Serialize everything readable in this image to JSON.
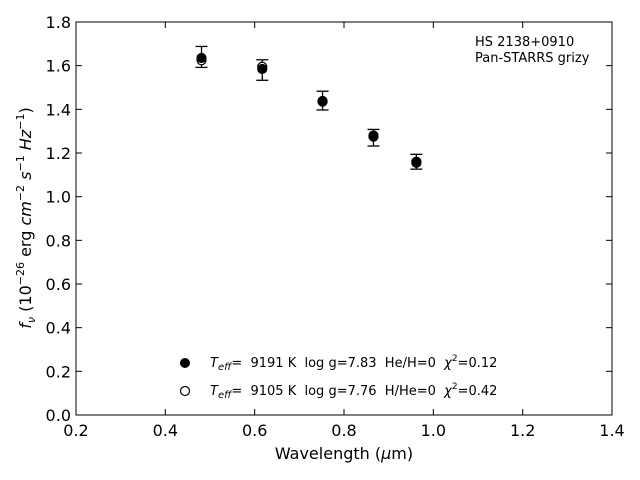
{
  "chart_data": {
    "type": "scatter",
    "title": "",
    "xlabel": "Wavelength (μm)",
    "ylabel": "f_ν (10^-26 erg cm^-2 s^-1 Hz^-1)",
    "xlim": [
      0.2,
      1.4
    ],
    "ylim": [
      0.0,
      1.8
    ],
    "xticks": [
      "0.2",
      "0.4",
      "0.6",
      "0.8",
      "1.0",
      "1.2",
      "1.4"
    ],
    "yticks": [
      "0.0",
      "0.2",
      "0.4",
      "0.6",
      "0.8",
      "1.0",
      "1.2",
      "1.4",
      "1.6",
      "1.8"
    ],
    "annotation": [
      "HS 2138+0910",
      "Pan-STARRS grizy"
    ],
    "grid": false,
    "legend_position": "lower-center",
    "errorbars": [
      {
        "x": 0.481,
        "y": 1.64,
        "err": 0.048
      },
      {
        "x": 0.617,
        "y": 1.58,
        "err": 0.047
      },
      {
        "x": 0.752,
        "y": 1.44,
        "err": 0.043
      },
      {
        "x": 0.866,
        "y": 1.27,
        "err": 0.038
      },
      {
        "x": 0.962,
        "y": 1.16,
        "err": 0.034
      }
    ],
    "series": [
      {
        "name": "T_eff= 9191 K log g=7.83 He/H=0 χ²=0.12",
        "marker": "filled-circle",
        "x": [
          0.481,
          0.617,
          0.752,
          0.866,
          0.962
        ],
        "y": [
          1.635,
          1.585,
          1.435,
          1.275,
          1.155
        ]
      },
      {
        "name": "T_eff= 9105 K log g=7.76 H/He=0 χ²=0.42",
        "marker": "open-circle",
        "x": [
          0.481,
          0.617,
          0.752,
          0.866,
          0.962
        ],
        "y": [
          1.625,
          1.595,
          1.438,
          1.28,
          1.16
        ]
      }
    ],
    "legend": [
      {
        "teff_label": "=  9191 K  log g=7.83  He/H=0  ",
        "chi_label": "=0.12"
      },
      {
        "teff_label": "=  9105 K  log g=7.76  H/He=0  ",
        "chi_label": "=0.42"
      }
    ],
    "colors": {
      "marker": "#000000",
      "axis": "#000000",
      "background": "#ffffff"
    }
  }
}
